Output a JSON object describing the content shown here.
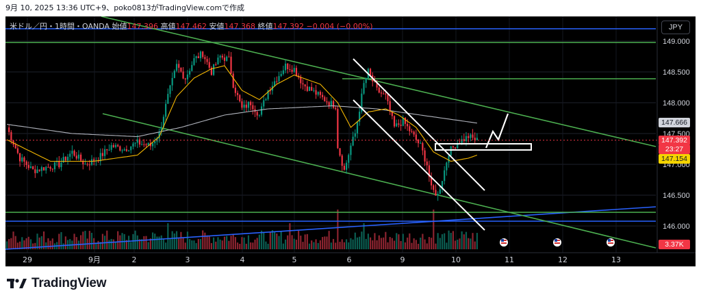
{
  "header": {
    "text": "9月 10, 2025 13:36 UTC+9、poko0813がTradingView.comで作成"
  },
  "legend": {
    "symbol": "米ドル／円・1時間・OANDA",
    "open_label": "始値",
    "open": "147.396",
    "high_label": "高値",
    "high": "147.462",
    "low_label": "安値",
    "low": "147.368",
    "close_label": "終値",
    "close": "147.392",
    "change": "−0.004 (−0.00%)"
  },
  "currency_button": "JPY",
  "price_axis": {
    "labels": [
      "149.000",
      "148.500",
      "148.000",
      "147.500",
      "147.000",
      "146.500",
      "146.000"
    ]
  },
  "time_axis": {
    "labels": [
      "29",
      "9月",
      "2",
      "3",
      "4",
      "5",
      "6",
      "9",
      "10",
      "11",
      "12",
      "13"
    ]
  },
  "price_tags": {
    "ma200": "147.666",
    "last": "147.392",
    "countdown": "23:27",
    "ma20": "147.154",
    "volume": "3.37K"
  },
  "logo": {
    "text": "TradingView"
  },
  "colors": {
    "up": "#089981",
    "down": "#f23645",
    "ma20": "#f5b700",
    "ma200": "#b2b5be",
    "trend_green": "#4caf50",
    "blue_lines": "#2962ff",
    "annotation": "#ffffff"
  },
  "chart_data": {
    "type": "candlestick",
    "symbol": "USDJPY",
    "timeframe": "1H",
    "ylim": [
      145.75,
      149.2
    ],
    "x_ticks": [
      "29",
      "9月",
      "2",
      "3",
      "4",
      "5",
      "6",
      "9",
      "10",
      "11",
      "12",
      "13"
    ],
    "anchors": [
      [
        0,
        147.6
      ],
      [
        6,
        147.1
      ],
      [
        12,
        146.9
      ],
      [
        18,
        146.95
      ],
      [
        24,
        147.0
      ],
      [
        30,
        147.2
      ],
      [
        36,
        147.0
      ],
      [
        42,
        147.1
      ],
      [
        48,
        147.3
      ],
      [
        54,
        147.25
      ],
      [
        60,
        147.35
      ],
      [
        66,
        147.3
      ],
      [
        70,
        147.5
      ],
      [
        74,
        148.1
      ],
      [
        78,
        148.6
      ],
      [
        82,
        148.4
      ],
      [
        86,
        148.7
      ],
      [
        90,
        148.8
      ],
      [
        94,
        148.5
      ],
      [
        98,
        148.75
      ],
      [
        102,
        148.7
      ],
      [
        104,
        148.3
      ],
      [
        108,
        147.9
      ],
      [
        112,
        148.0
      ],
      [
        116,
        147.8
      ],
      [
        120,
        148.2
      ],
      [
        124,
        148.4
      ],
      [
        128,
        148.6
      ],
      [
        132,
        148.55
      ],
      [
        136,
        148.3
      ],
      [
        140,
        148.2
      ],
      [
        144,
        148.1
      ],
      [
        148,
        148.0
      ],
      [
        151,
        147.95
      ],
      [
        152,
        147.3
      ],
      [
        155,
        146.9
      ],
      [
        158,
        147.3
      ],
      [
        160,
        147.5
      ],
      [
        164,
        148.3
      ],
      [
        166,
        148.5
      ],
      [
        170,
        148.2
      ],
      [
        174,
        148.1
      ],
      [
        178,
        147.6
      ],
      [
        182,
        147.7
      ],
      [
        186,
        147.5
      ],
      [
        190,
        147.3
      ],
      [
        193,
        147.0
      ],
      [
        195,
        146.6
      ],
      [
        198,
        146.5
      ],
      [
        201,
        146.9
      ],
      [
        203,
        147.2
      ],
      [
        207,
        147.35
      ],
      [
        212,
        147.45
      ],
      [
        216,
        147.39
      ]
    ],
    "ma20_anchors": [
      [
        0,
        147.4
      ],
      [
        20,
        147.05
      ],
      [
        40,
        147.05
      ],
      [
        60,
        147.15
      ],
      [
        70,
        147.45
      ],
      [
        78,
        148.1
      ],
      [
        86,
        148.4
      ],
      [
        94,
        148.55
      ],
      [
        100,
        148.6
      ],
      [
        108,
        148.2
      ],
      [
        116,
        148.05
      ],
      [
        124,
        148.3
      ],
      [
        132,
        148.45
      ],
      [
        144,
        148.3
      ],
      [
        152,
        148.0
      ],
      [
        158,
        147.6
      ],
      [
        166,
        147.85
      ],
      [
        174,
        147.9
      ],
      [
        180,
        147.8
      ],
      [
        188,
        147.6
      ],
      [
        196,
        147.2
      ],
      [
        204,
        147.05
      ],
      [
        212,
        147.1
      ],
      [
        216,
        147.15
      ]
    ],
    "ma200_anchors": [
      [
        0,
        147.65
      ],
      [
        30,
        147.5
      ],
      [
        60,
        147.45
      ],
      [
        80,
        147.6
      ],
      [
        100,
        147.8
      ],
      [
        120,
        147.9
      ],
      [
        150,
        147.95
      ],
      [
        170,
        147.9
      ],
      [
        190,
        147.8
      ],
      [
        216,
        147.67
      ]
    ]
  }
}
